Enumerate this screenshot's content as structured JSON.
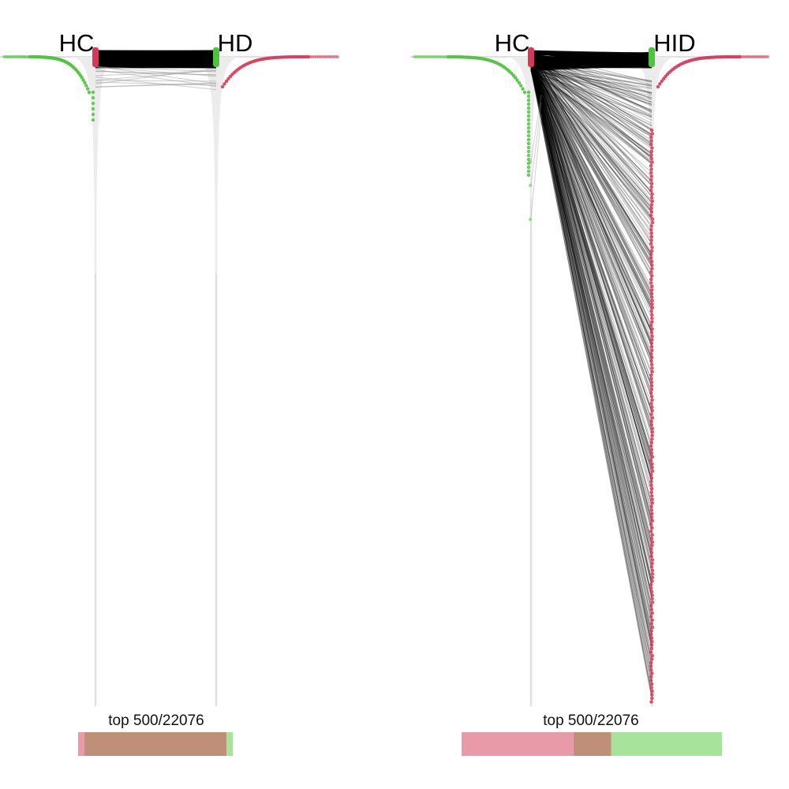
{
  "chart_data": [
    {
      "type": "other",
      "description_free": true,
      "left_label": "HC",
      "right_label": "HD",
      "caption": "top 500/22076",
      "top_n": 500,
      "total": 22076,
      "connections_shown": 500,
      "overlap_bar": {
        "left_only": 0.04,
        "shared": 0.91,
        "right_only": 0.04
      },
      "colors": {
        "up": "#d63a5a",
        "down": "#4dc43d",
        "link": "#000000",
        "axis": "#e0e0e0"
      }
    },
    {
      "type": "other",
      "description_free": true,
      "left_label": "HC",
      "right_label": "HID",
      "caption": "top 500/22076",
      "top_n": 500,
      "total": 22076,
      "connections_shown": 500,
      "overlap_bar": {
        "left_only": 0.43,
        "shared": 0.145,
        "right_only": 0.425
      },
      "colors": {
        "up": "#d63a5a",
        "down": "#4dc43d",
        "link": "#000000",
        "axis": "#e0e0e0"
      }
    }
  ]
}
